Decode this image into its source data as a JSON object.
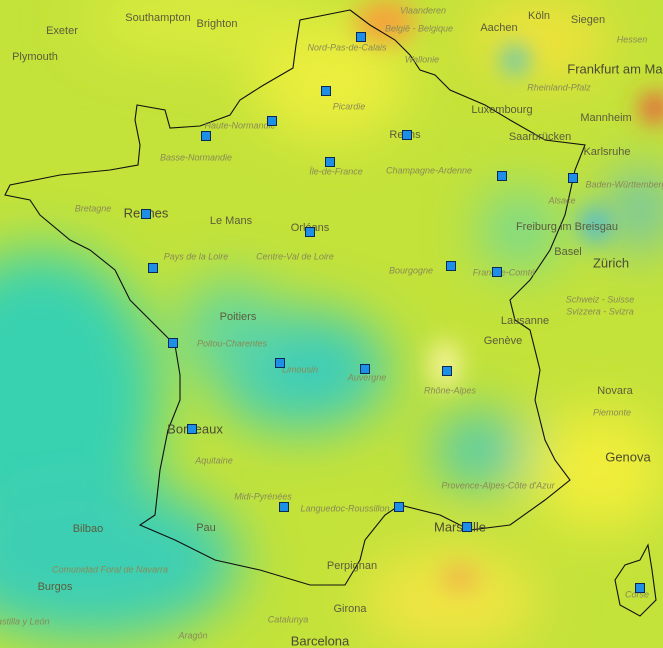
{
  "places": {
    "cities": [
      "Southampton",
      "Brighton",
      "Exeter",
      "Plymouth",
      "Aachen",
      "Köln",
      "Siegen",
      "Frankfurt am Main",
      "Luxembourg",
      "Mannheim",
      "Saarbrücken",
      "Karlsruhe",
      "Reims",
      "Rennes",
      "Le Mans",
      "Orléans",
      "Freiburg im Breisgau",
      "Basel",
      "Zürich",
      "Poitiers",
      "Lausanne",
      "Genève",
      "Bordeaux",
      "Novara",
      "Genova",
      "Marseille",
      "Bilbao",
      "Pau",
      "Perpignan",
      "Burgos",
      "Girona",
      "Barcelona"
    ],
    "regions": [
      "Vlaanderen",
      "België - Belgique",
      "Nord-Pas-de-Calais",
      "Wallonie",
      "Hessen",
      "Rheinland-Pfalz",
      "Picardie",
      "Haute-Normandie",
      "Basse-Normandie",
      "Île-de-France",
      "Champagne-Ardenne",
      "Alsace",
      "Baden-Württemberg",
      "Bretagne",
      "Pays de la Loire",
      "Centre-Val de Loire",
      "Bourgogne",
      "Franche-Comté",
      "Schweiz - Suisse",
      "Svizzera - Svizra",
      "Poitou-Charentes",
      "Limousin",
      "Auvergne",
      "Rhône-Alpes",
      "Piemonte",
      "Aquitaine",
      "Midi-Pyrénées",
      "Languedoc-Roussillon",
      "Provence-Alpes-Côte d'Azur",
      "Comunidad Foral de Navarra",
      "Castilla y León",
      "Aragón",
      "Catalunya",
      "Corse"
    ]
  }
}
